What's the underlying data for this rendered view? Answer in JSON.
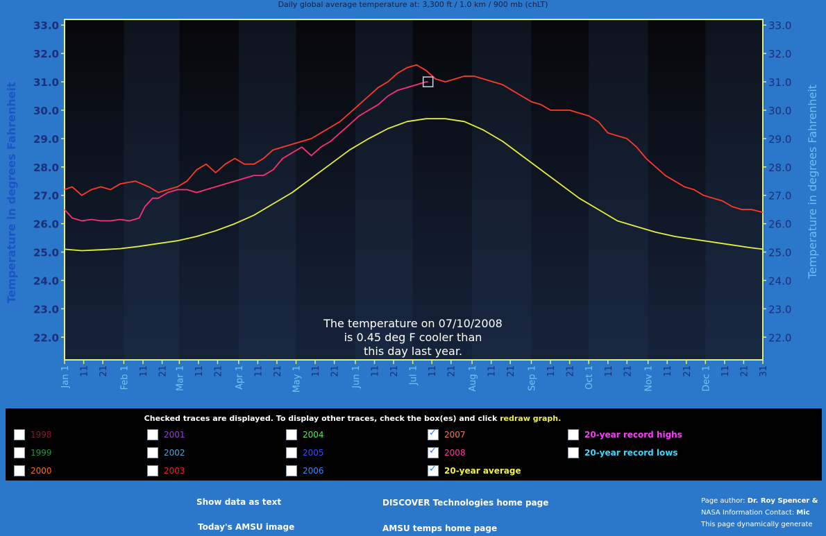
{
  "page": {
    "title": "Daily global average temperature at: 3,300 ft / 1.0 km / 900 mb (chLT)"
  },
  "chart_data": {
    "type": "line",
    "title": "Daily global average temperature at: 3,300 ft / 1.0 km / 900 mb (chLT)",
    "ylabel_left": "Temperature in degrees Fahrenheit",
    "ylabel_right": "Temperature in degrees Fahrenheit",
    "ylim": [
      21.2,
      33.2
    ],
    "y_ticks": [
      "22.0",
      "23.0",
      "24.0",
      "25.0",
      "26.0",
      "27.0",
      "28.0",
      "29.0",
      "30.0",
      "31.0",
      "32.0",
      "33.0"
    ],
    "x_range_days": [
      1,
      366
    ],
    "x_ticks": [
      {
        "day": 1,
        "label": "Jan 1",
        "month": true
      },
      {
        "day": 11,
        "label": "11"
      },
      {
        "day": 21,
        "label": "21"
      },
      {
        "day": 32,
        "label": "Feb 1",
        "month": true
      },
      {
        "day": 42,
        "label": "11"
      },
      {
        "day": 52,
        "label": "21"
      },
      {
        "day": 61,
        "label": "Mar 1",
        "month": true
      },
      {
        "day": 71,
        "label": "11"
      },
      {
        "day": 81,
        "label": "21"
      },
      {
        "day": 92,
        "label": "Apr 1",
        "month": true
      },
      {
        "day": 102,
        "label": "11"
      },
      {
        "day": 112,
        "label": "21"
      },
      {
        "day": 122,
        "label": "May 1",
        "month": true
      },
      {
        "day": 132,
        "label": "11"
      },
      {
        "day": 142,
        "label": "21"
      },
      {
        "day": 153,
        "label": "Jun 1",
        "month": true
      },
      {
        "day": 163,
        "label": "11"
      },
      {
        "day": 173,
        "label": "21"
      },
      {
        "day": 183,
        "label": "Jul 1",
        "month": true
      },
      {
        "day": 193,
        "label": "11"
      },
      {
        "day": 203,
        "label": "21"
      },
      {
        "day": 214,
        "label": "Aug 1",
        "month": true
      },
      {
        "day": 224,
        "label": "11"
      },
      {
        "day": 234,
        "label": "21"
      },
      {
        "day": 245,
        "label": "Sep 1",
        "month": true
      },
      {
        "day": 255,
        "label": "11"
      },
      {
        "day": 265,
        "label": "21"
      },
      {
        "day": 275,
        "label": "Oct 1",
        "month": true
      },
      {
        "day": 285,
        "label": "11"
      },
      {
        "day": 295,
        "label": "21"
      },
      {
        "day": 306,
        "label": "Nov 1",
        "month": true
      },
      {
        "day": 316,
        "label": "11"
      },
      {
        "day": 326,
        "label": "21"
      },
      {
        "day": 336,
        "label": "Dec 1",
        "month": true
      },
      {
        "day": 346,
        "label": "11"
      },
      {
        "day": 356,
        "label": "21"
      },
      {
        "day": 366,
        "label": "31"
      }
    ],
    "series": [
      {
        "name": "2007",
        "color": "#ff3a26",
        "points": [
          [
            1,
            27.2
          ],
          [
            5,
            27.3
          ],
          [
            10,
            27.0
          ],
          [
            15,
            27.2
          ],
          [
            20,
            27.3
          ],
          [
            25,
            27.2
          ],
          [
            30,
            27.4
          ],
          [
            38,
            27.5
          ],
          [
            45,
            27.3
          ],
          [
            50,
            27.1
          ],
          [
            55,
            27.2
          ],
          [
            60,
            27.3
          ],
          [
            65,
            27.5
          ],
          [
            70,
            27.9
          ],
          [
            75,
            28.1
          ],
          [
            80,
            27.8
          ],
          [
            85,
            28.1
          ],
          [
            90,
            28.3
          ],
          [
            95,
            28.1
          ],
          [
            100,
            28.1
          ],
          [
            105,
            28.3
          ],
          [
            110,
            28.6
          ],
          [
            115,
            28.7
          ],
          [
            120,
            28.8
          ],
          [
            125,
            28.9
          ],
          [
            130,
            29.0
          ],
          [
            135,
            29.2
          ],
          [
            140,
            29.4
          ],
          [
            145,
            29.6
          ],
          [
            150,
            29.9
          ],
          [
            155,
            30.2
          ],
          [
            160,
            30.5
          ],
          [
            165,
            30.8
          ],
          [
            170,
            31.0
          ],
          [
            175,
            31.3
          ],
          [
            180,
            31.5
          ],
          [
            185,
            31.6
          ],
          [
            190,
            31.4
          ],
          [
            195,
            31.1
          ],
          [
            200,
            31.0
          ],
          [
            205,
            31.1
          ],
          [
            210,
            31.2
          ],
          [
            215,
            31.2
          ],
          [
            220,
            31.1
          ],
          [
            225,
            31.0
          ],
          [
            230,
            30.9
          ],
          [
            235,
            30.7
          ],
          [
            240,
            30.5
          ],
          [
            245,
            30.3
          ],
          [
            250,
            30.2
          ],
          [
            255,
            30.0
          ],
          [
            260,
            30.0
          ],
          [
            265,
            30.0
          ],
          [
            270,
            29.9
          ],
          [
            275,
            29.8
          ],
          [
            280,
            29.6
          ],
          [
            285,
            29.2
          ],
          [
            290,
            29.1
          ],
          [
            295,
            29.0
          ],
          [
            300,
            28.7
          ],
          [
            305,
            28.3
          ],
          [
            310,
            28.0
          ],
          [
            315,
            27.7
          ],
          [
            320,
            27.5
          ],
          [
            325,
            27.3
          ],
          [
            330,
            27.2
          ],
          [
            335,
            27.0
          ],
          [
            340,
            26.9
          ],
          [
            345,
            26.8
          ],
          [
            350,
            26.6
          ],
          [
            355,
            26.5
          ],
          [
            360,
            26.5
          ],
          [
            366,
            26.4
          ]
        ]
      },
      {
        "name": "2008",
        "color": "#ff2f72",
        "points": [
          [
            1,
            26.5
          ],
          [
            5,
            26.2
          ],
          [
            10,
            26.1
          ],
          [
            15,
            26.15
          ],
          [
            20,
            26.1
          ],
          [
            25,
            26.1
          ],
          [
            30,
            26.15
          ],
          [
            35,
            26.1
          ],
          [
            40,
            26.2
          ],
          [
            43,
            26.6
          ],
          [
            47,
            26.9
          ],
          [
            50,
            26.9
          ],
          [
            55,
            27.1
          ],
          [
            60,
            27.2
          ],
          [
            65,
            27.2
          ],
          [
            70,
            27.1
          ],
          [
            75,
            27.2
          ],
          [
            80,
            27.3
          ],
          [
            85,
            27.4
          ],
          [
            90,
            27.5
          ],
          [
            95,
            27.6
          ],
          [
            100,
            27.7
          ],
          [
            105,
            27.7
          ],
          [
            110,
            27.9
          ],
          [
            115,
            28.3
          ],
          [
            120,
            28.5
          ],
          [
            125,
            28.7
          ],
          [
            130,
            28.4
          ],
          [
            135,
            28.7
          ],
          [
            140,
            28.9
          ],
          [
            145,
            29.2
          ],
          [
            150,
            29.5
          ],
          [
            155,
            29.8
          ],
          [
            160,
            30.0
          ],
          [
            165,
            30.2
          ],
          [
            170,
            30.5
          ],
          [
            175,
            30.7
          ],
          [
            180,
            30.8
          ],
          [
            185,
            30.9
          ],
          [
            190,
            31.0
          ],
          [
            191,
            31.0
          ]
        ]
      },
      {
        "name": "20-year average",
        "color": "#e8f03a",
        "points": [
          [
            1,
            25.1
          ],
          [
            10,
            25.05
          ],
          [
            20,
            25.08
          ],
          [
            30,
            25.12
          ],
          [
            40,
            25.2
          ],
          [
            50,
            25.3
          ],
          [
            60,
            25.4
          ],
          [
            70,
            25.55
          ],
          [
            80,
            25.75
          ],
          [
            90,
            26.0
          ],
          [
            100,
            26.3
          ],
          [
            110,
            26.7
          ],
          [
            120,
            27.1
          ],
          [
            130,
            27.6
          ],
          [
            140,
            28.1
          ],
          [
            150,
            28.6
          ],
          [
            160,
            29.0
          ],
          [
            170,
            29.35
          ],
          [
            180,
            29.6
          ],
          [
            190,
            29.7
          ],
          [
            200,
            29.7
          ],
          [
            210,
            29.6
          ],
          [
            220,
            29.3
          ],
          [
            230,
            28.9
          ],
          [
            240,
            28.4
          ],
          [
            250,
            27.9
          ],
          [
            260,
            27.4
          ],
          [
            270,
            26.9
          ],
          [
            280,
            26.5
          ],
          [
            290,
            26.1
          ],
          [
            300,
            25.9
          ],
          [
            310,
            25.7
          ],
          [
            320,
            25.55
          ],
          [
            330,
            25.45
          ],
          [
            340,
            25.35
          ],
          [
            350,
            25.25
          ],
          [
            360,
            25.15
          ],
          [
            366,
            25.1
          ]
        ]
      }
    ],
    "marker": {
      "day": 191,
      "value": 31.0
    },
    "annotation_lines": [
      "The temperature on 07/10/2008",
      "is  0.45 deg F cooler than",
      "this day last year."
    ]
  },
  "controls": {
    "instruction": "Checked traces are displayed. To display other traces, check the box(es) and click",
    "redraw_link": "redraw graph.",
    "items": [
      {
        "label": "1998",
        "color": "#8a1a2a",
        "checked": false
      },
      {
        "label": "1999",
        "color": "#1f9a3a",
        "checked": false
      },
      {
        "label": "2000",
        "color": "#ff6a1a",
        "checked": false
      },
      {
        "label": "2001",
        "color": "#9a3ae0",
        "checked": false
      },
      {
        "label": "2002",
        "color": "#4aa8d8",
        "checked": false
      },
      {
        "label": "2003",
        "color": "#ff1a1a",
        "checked": false
      },
      {
        "label": "2004",
        "color": "#4af04a",
        "checked": false
      },
      {
        "label": "2005",
        "color": "#3a4aff",
        "checked": false
      },
      {
        "label": "2006",
        "color": "#3a8aff",
        "checked": false
      },
      {
        "label": "2007",
        "color": "#ff7a3a",
        "checked": true
      },
      {
        "label": "2008",
        "color": "#ff3aa0",
        "checked": true
      },
      {
        "label": "20-year average",
        "color": "#f2f23a",
        "checked": true
      },
      {
        "label": "20-year record highs",
        "color": "#ff3aff",
        "checked": false
      },
      {
        "label": "20-year record lows",
        "color": "#3ad8ff",
        "checked": false
      }
    ]
  },
  "footer": {
    "show_text": "Show data as text",
    "todays_image": "Today's AMSU image",
    "discover_home": "DISCOVER Technologies home page",
    "amsu_home": "AMSU temps home page",
    "author_label": "Page author:",
    "author_name": "Dr. Roy Spencer &",
    "nasa_label": "NASA Information Contact:",
    "nasa_name": "Mic",
    "generated": "This page dynamically generate"
  }
}
